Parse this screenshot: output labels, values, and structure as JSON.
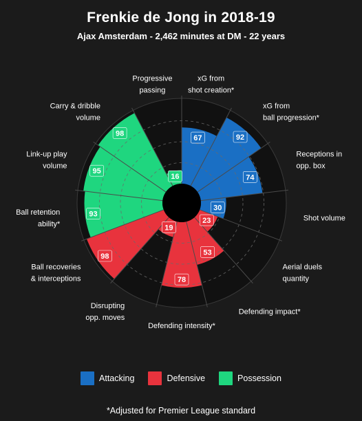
{
  "title": "Frenkie de Jong in 2018-19",
  "subtitle": "Ajax Amsterdam - 2,462 minutes at DM - 22 years",
  "footnote": "*Adjusted for Premier League standard",
  "colors": {
    "Attacking": "#1a6fc4",
    "Defensive": "#e8333d",
    "Possession": "#1fd67f",
    "background": "#1b1b1b"
  },
  "legend": [
    {
      "name": "Attacking",
      "color": "#1a6fc4"
    },
    {
      "name": "Defensive",
      "color": "#e8333d"
    },
    {
      "name": "Possession",
      "color": "#1fd67f"
    }
  ],
  "chart_data": {
    "type": "polar-bar",
    "ylim": [
      0,
      100
    ],
    "grid": true,
    "legend_position": "bottom",
    "categories": [
      {
        "label": [
          "xG from",
          "shot creation*"
        ],
        "value": 67,
        "group": "Attacking"
      },
      {
        "label": [
          "xG from",
          "ball progression*"
        ],
        "value": 92,
        "group": "Attacking"
      },
      {
        "label": [
          "Receptions in",
          "opp. box"
        ],
        "value": 74,
        "group": "Attacking"
      },
      {
        "label": [
          "Shot volume"
        ],
        "value": 30,
        "group": "Attacking"
      },
      {
        "label": [
          "Aerial duels",
          "quantity"
        ],
        "value": 23,
        "group": "Defensive"
      },
      {
        "label": [
          "Defending impact*"
        ],
        "value": 53,
        "group": "Defensive"
      },
      {
        "label": [
          "Defending intensity*"
        ],
        "value": 78,
        "group": "Defensive"
      },
      {
        "label": [
          "Disrupting",
          "opp. moves"
        ],
        "value": 19,
        "group": "Defensive"
      },
      {
        "label": [
          "Ball recoveries",
          "& interceptions"
        ],
        "value": 98,
        "group": "Defensive"
      },
      {
        "label": [
          "Ball retention",
          "ability*"
        ],
        "value": 93,
        "group": "Possession"
      },
      {
        "label": [
          "Link-up play",
          "volume"
        ],
        "value": 95,
        "group": "Possession"
      },
      {
        "label": [
          "Carry & dribble",
          "volume"
        ],
        "value": 98,
        "group": "Possession"
      },
      {
        "label": [
          "Progressive",
          "passing"
        ],
        "value": 16,
        "group": "Possession"
      }
    ]
  }
}
